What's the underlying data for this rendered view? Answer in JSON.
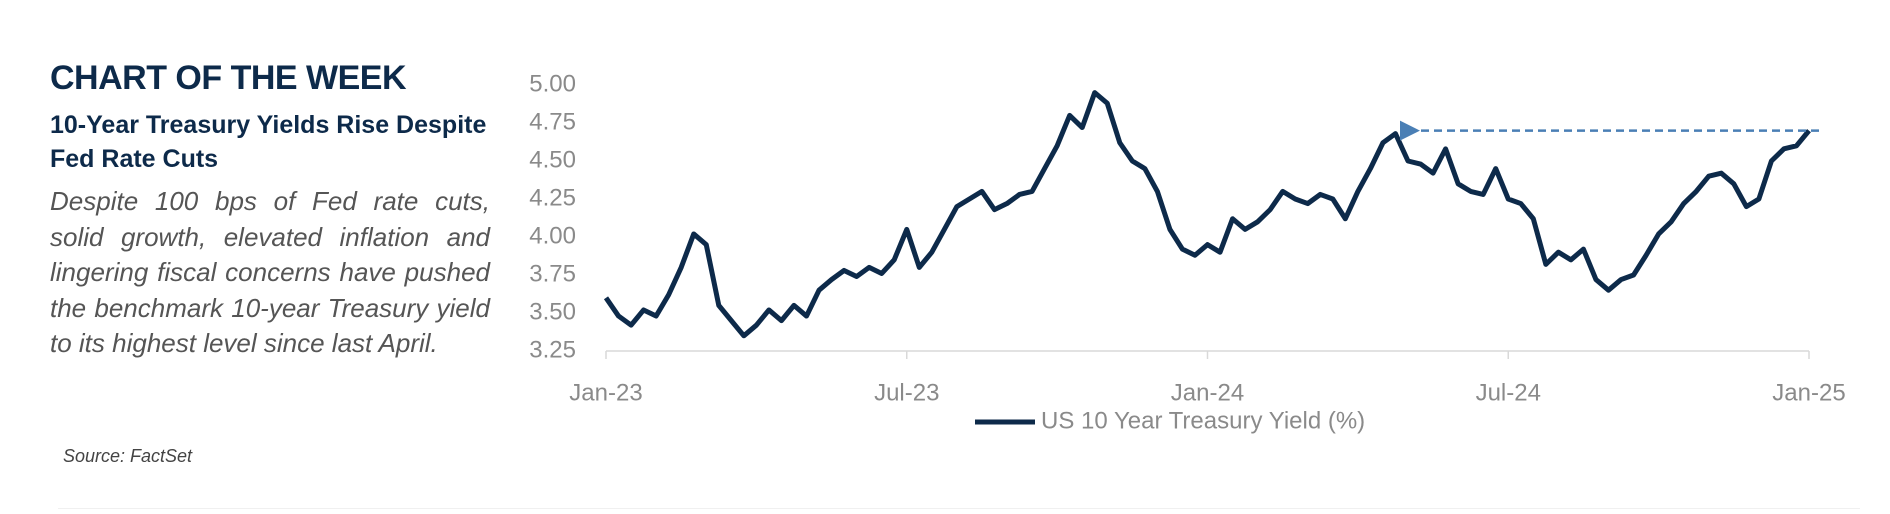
{
  "header": {
    "title": "CHART OF THE WEEK",
    "subtitle": "10-Year Treasury Yields Rise Despite Fed Rate Cuts",
    "body": "Despite 100 bps of Fed rate cuts, solid growth, elevated inflation and lingering fiscal concerns have pushed the benchmark 10-year Treasury yield to its highest level since last April.",
    "source": "Source: FactSet"
  },
  "chart_data": {
    "type": "line",
    "x": [
      0,
      0.25,
      0.5,
      0.75,
      1,
      1.25,
      1.5,
      1.75,
      2,
      2.25,
      2.5,
      2.75,
      3,
      3.25,
      3.5,
      3.75,
      4,
      4.25,
      4.5,
      4.75,
      5,
      5.25,
      5.5,
      5.75,
      6,
      6.25,
      6.5,
      6.75,
      7,
      7.25,
      7.5,
      7.75,
      8,
      8.25,
      8.5,
      8.75,
      9,
      9.25,
      9.5,
      9.75,
      10,
      10.25,
      10.5,
      10.75,
      11,
      11.25,
      11.5,
      11.75,
      12,
      12.25,
      12.5,
      12.75,
      13,
      13.25,
      13.5,
      13.75,
      14,
      14.25,
      14.5,
      14.75,
      15,
      15.25,
      15.5,
      15.75,
      16,
      16.25,
      16.5,
      16.75,
      17,
      17.25,
      17.5,
      17.75,
      18,
      18.25,
      18.5,
      18.75,
      19,
      19.25,
      19.5,
      19.75,
      20,
      20.25,
      20.5,
      20.75,
      21,
      21.25,
      21.5,
      21.75,
      22,
      22.25,
      22.5,
      22.75,
      23,
      23.25,
      23.5,
      23.75,
      24
    ],
    "series": [
      {
        "name": "US 10 Year Treasury Yield (%)",
        "color": "#0d2a4a",
        "values": [
          3.6,
          3.48,
          3.42,
          3.52,
          3.48,
          3.62,
          3.8,
          4.02,
          3.95,
          3.55,
          3.45,
          3.35,
          3.42,
          3.52,
          3.45,
          3.55,
          3.48,
          3.65,
          3.72,
          3.78,
          3.74,
          3.8,
          3.76,
          3.85,
          4.05,
          3.8,
          3.9,
          4.05,
          4.2,
          4.25,
          4.3,
          4.18,
          4.22,
          4.28,
          4.3,
          4.45,
          4.6,
          4.8,
          4.72,
          4.95,
          4.88,
          4.62,
          4.5,
          4.45,
          4.3,
          4.05,
          3.92,
          3.88,
          3.95,
          3.9,
          4.12,
          4.05,
          4.1,
          4.18,
          4.3,
          4.25,
          4.22,
          4.28,
          4.25,
          4.12,
          4.3,
          4.45,
          4.62,
          4.68,
          4.5,
          4.48,
          4.42,
          4.58,
          4.35,
          4.3,
          4.28,
          4.45,
          4.25,
          4.22,
          4.12,
          3.82,
          3.9,
          3.85,
          3.92,
          3.72,
          3.65,
          3.72,
          3.75,
          3.88,
          4.02,
          4.1,
          4.22,
          4.3,
          4.4,
          4.42,
          4.35,
          4.2,
          4.25,
          4.5,
          4.58,
          4.6,
          4.7
        ]
      }
    ],
    "xlim": [
      0,
      24
    ],
    "xticks": [
      {
        "value": 0,
        "label": "Jan-23"
      },
      {
        "value": 6,
        "label": "Jul-23"
      },
      {
        "value": 12,
        "label": "Jan-24"
      },
      {
        "value": 18,
        "label": "Jul-24"
      },
      {
        "value": 24,
        "label": "Jan-25"
      }
    ],
    "ylim": [
      3.25,
      5
    ],
    "yticks": [
      {
        "value": 3.25,
        "label": "3.25"
      },
      {
        "value": 3.5,
        "label": "3.50"
      },
      {
        "value": 3.75,
        "label": "3.75"
      },
      {
        "value": 4,
        "label": "4.00"
      },
      {
        "value": 4.25,
        "label": "4.25"
      },
      {
        "value": 4.5,
        "label": "4.50"
      },
      {
        "value": 4.75,
        "label": "4.75"
      },
      {
        "value": 5,
        "label": "5.00"
      }
    ],
    "annotation_color": "#4a7fb5",
    "legend": "bottom"
  }
}
